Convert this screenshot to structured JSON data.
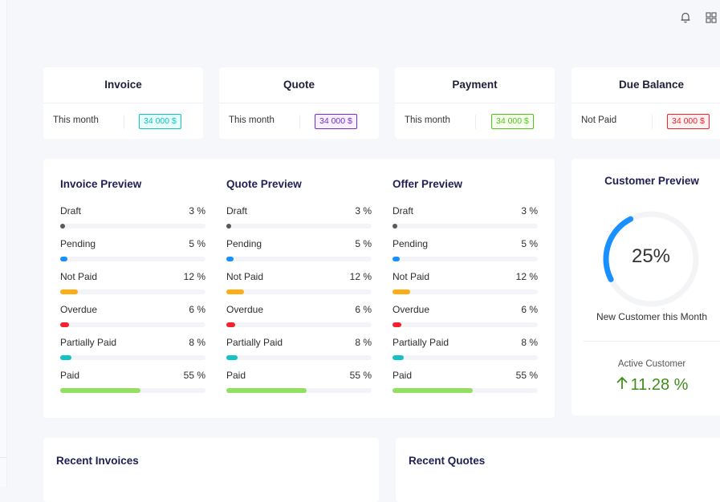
{
  "header": {
    "icons": [
      "bell-icon",
      "grid-icon"
    ]
  },
  "summary_cards": [
    {
      "title": "Invoice",
      "label": "This month",
      "value": "34 000 $",
      "color": "#13c2c2",
      "bg": "#e6fffb"
    },
    {
      "title": "Quote",
      "label": "This month",
      "value": "34 000 $",
      "color": "#722ed1",
      "bg": "#f9f0ff"
    },
    {
      "title": "Payment",
      "label": "This month",
      "value": "34 000 $",
      "color": "#52c41a",
      "bg": "#f6ffed"
    },
    {
      "title": "Due Balance",
      "label": "Not Paid",
      "value": "34 000 $",
      "color": "#f5222d",
      "bg": "#fff1f0"
    }
  ],
  "preview_rows": [
    {
      "label": "Draft",
      "percent": 3,
      "color": "#595959"
    },
    {
      "label": "Pending",
      "percent": 5,
      "color": "#1890ff"
    },
    {
      "label": "Not Paid",
      "percent": 12,
      "color": "#faad14"
    },
    {
      "label": "Overdue",
      "percent": 6,
      "color": "#f5222d"
    },
    {
      "label": "Partially Paid",
      "percent": 8,
      "color": "#13c2c2"
    },
    {
      "label": "Paid",
      "percent": 55,
      "color": "#95de64"
    }
  ],
  "previews": [
    {
      "title": "Invoice Preview"
    },
    {
      "title": "Quote Preview"
    },
    {
      "title": "Offer Preview"
    }
  ],
  "customer": {
    "title": "Customer Preview",
    "gauge_value": "25%",
    "gauge_percent": 25,
    "gauge_color": "#1890ff",
    "subtitle": "New Customer this Month",
    "active_label": "Active Customer",
    "active_value": "11.28 %",
    "active_color": "#3f8600"
  },
  "recent": {
    "invoices_title": "Recent Invoices",
    "quotes_title": "Recent Quotes"
  }
}
